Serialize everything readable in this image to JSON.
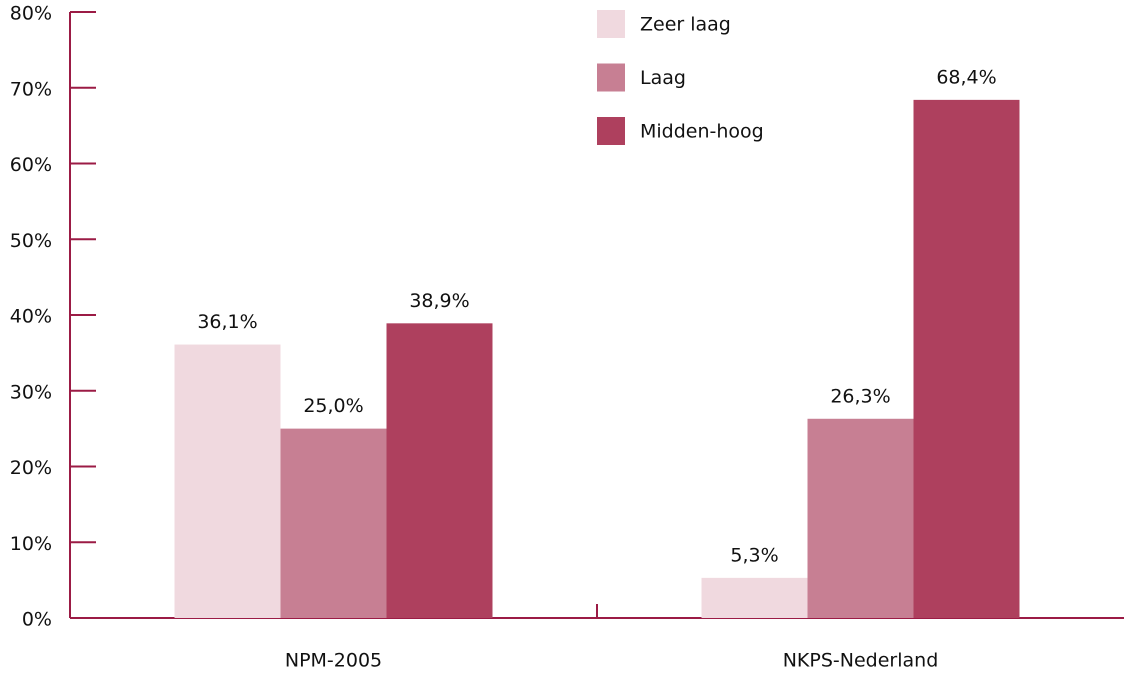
{
  "chart_data": {
    "type": "bar",
    "categories": [
      "NPM-2005",
      "NKPS-Nederland"
    ],
    "series": [
      {
        "name": "Zeer laag",
        "color": "#f0d9df",
        "values": [
          36.1,
          5.3
        ],
        "value_labels": [
          "36,1%",
          "5,3%"
        ]
      },
      {
        "name": "Laag",
        "color": "#c77f93",
        "values": [
          25.0,
          26.3
        ],
        "value_labels": [
          "25,0%",
          "26,3%"
        ]
      },
      {
        "name": "Midden-hoog",
        "color": "#ae405e",
        "values": [
          38.9,
          68.4
        ],
        "value_labels": [
          "38,9%",
          "68,4%"
        ]
      }
    ],
    "ylim": [
      0,
      80
    ],
    "yticks": [
      {
        "value": 0,
        "label": "0%"
      },
      {
        "value": 10,
        "label": "10%"
      },
      {
        "value": 20,
        "label": "20%"
      },
      {
        "value": 30,
        "label": "30%"
      },
      {
        "value": 40,
        "label": "40%"
      },
      {
        "value": 50,
        "label": "50%"
      },
      {
        "value": 60,
        "label": "60%"
      },
      {
        "value": 70,
        "label": "70%"
      },
      {
        "value": 80,
        "label": "80%"
      }
    ],
    "grid": false,
    "legend": "top"
  }
}
